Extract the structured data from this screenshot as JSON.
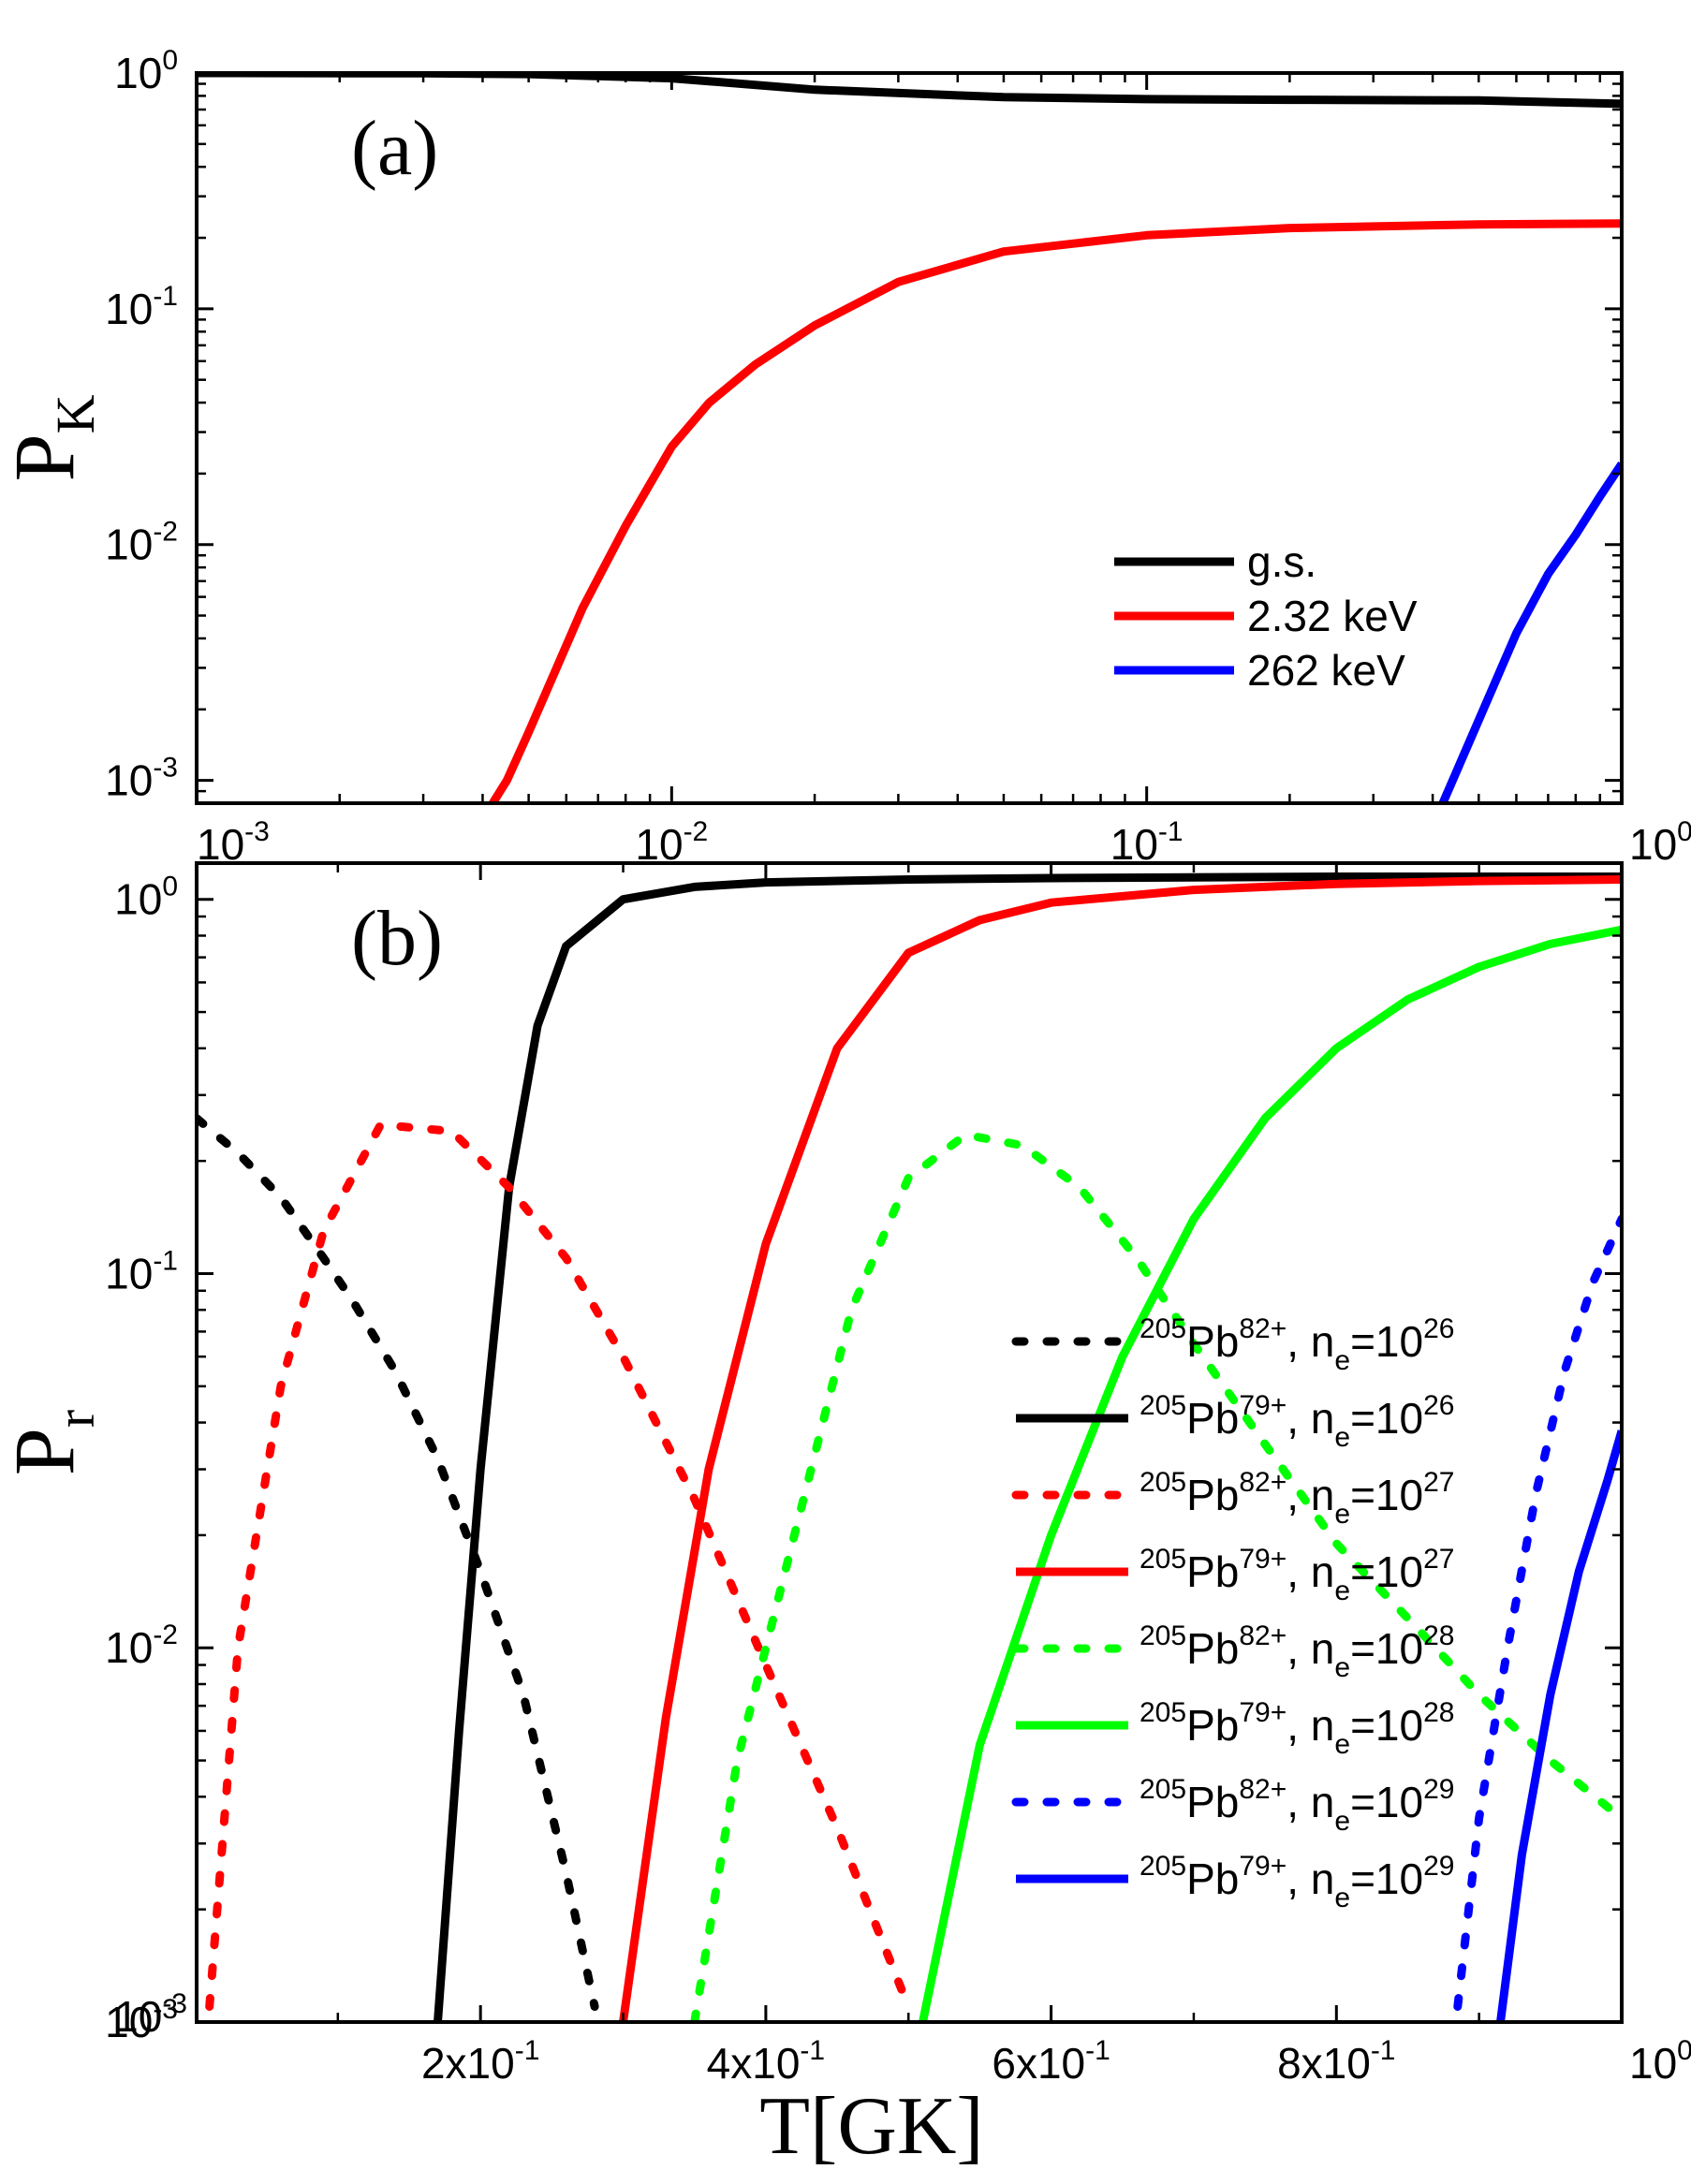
{
  "chart_data": [
    {
      "panel_label": "(a)",
      "type": "line",
      "xscale": "log",
      "yscale": "log",
      "xlim": [
        0.001,
        1
      ],
      "ylim": [
        0.0008,
        1
      ],
      "ylabel": {
        "main": "P",
        "sub": "K"
      },
      "xlabel": "",
      "x_ticks": [
        {
          "value": 0.001,
          "base": "10",
          "exp": "-3"
        },
        {
          "value": 0.01,
          "base": "10",
          "exp": "-2"
        },
        {
          "value": 0.1,
          "base": "10",
          "exp": "-1"
        },
        {
          "value": 1,
          "base": "10",
          "exp": "0"
        }
      ],
      "y_ticks": [
        {
          "value": 0.001,
          "base": "10",
          "exp": "-3"
        },
        {
          "value": 0.01,
          "base": "10",
          "exp": "-2"
        },
        {
          "value": 0.1,
          "base": "10",
          "exp": "-1"
        },
        {
          "value": 1,
          "base": "10",
          "exp": "0"
        }
      ],
      "legend_position": "center-right",
      "series": [
        {
          "name": "g.s.",
          "color": "#000000",
          "dash": "solid",
          "x": [
            0.001,
            0.003,
            0.005,
            0.01,
            0.02,
            0.05,
            0.1,
            0.2,
            0.5,
            1.0
          ],
          "y": [
            1.0,
            0.997,
            0.99,
            0.95,
            0.85,
            0.79,
            0.775,
            0.77,
            0.765,
            0.74
          ]
        },
        {
          "name": "2.32 keV",
          "color": "#ff0000",
          "dash": "solid",
          "x": [
            0.0042,
            0.0045,
            0.005,
            0.0065,
            0.008,
            0.01,
            0.012,
            0.015,
            0.02,
            0.03,
            0.05,
            0.1,
            0.2,
            0.5,
            1.0
          ],
          "y": [
            0.0008,
            0.001,
            0.0016,
            0.0054,
            0.012,
            0.026,
            0.04,
            0.058,
            0.085,
            0.13,
            0.175,
            0.205,
            0.22,
            0.228,
            0.23
          ]
        },
        {
          "name": "262 keV",
          "color": "#0000ff",
          "dash": "solid",
          "x": [
            0.42,
            0.5,
            0.6,
            0.7,
            0.8,
            0.9,
            1.0
          ],
          "y": [
            0.0008,
            0.0018,
            0.0042,
            0.0075,
            0.011,
            0.016,
            0.022
          ]
        }
      ]
    },
    {
      "panel_label": "(b)",
      "type": "line",
      "xscale": "linear",
      "yscale": "log",
      "xlim": [
        0.001,
        1
      ],
      "ylim": [
        0.001,
        1.25
      ],
      "ylabel": {
        "main": "P",
        "sub": "r"
      },
      "xlabel": "T[GK]",
      "x_ticks": [
        {
          "value": 0.001,
          "base": "10",
          "exp": "-3"
        },
        {
          "value": 0.2,
          "base": "2x10",
          "exp": "-1"
        },
        {
          "value": 0.4,
          "base": "4x10",
          "exp": "-1"
        },
        {
          "value": 0.6,
          "base": "6x10",
          "exp": "-1"
        },
        {
          "value": 0.8,
          "base": "8x10",
          "exp": "-1"
        },
        {
          "value": 1,
          "base": "10",
          "exp": "0"
        }
      ],
      "y_ticks": [
        {
          "value": 0.001,
          "base": "10",
          "exp": "-3"
        },
        {
          "value": 0.01,
          "base": "10",
          "exp": "-2"
        },
        {
          "value": 0.1,
          "base": "10",
          "exp": "-1"
        },
        {
          "value": 1,
          "base": "10",
          "exp": "0"
        }
      ],
      "legend_position": "right",
      "series": [
        {
          "label": {
            "iso": "205",
            "ion": "82+",
            "ne": "26"
          },
          "color": "#000000",
          "dash": "dotted",
          "x": [
            0.001,
            0.03,
            0.06,
            0.09,
            0.11,
            0.14,
            0.17,
            0.2,
            0.23,
            0.26,
            0.28
          ],
          "y": [
            0.26,
            0.21,
            0.16,
            0.11,
            0.085,
            0.055,
            0.032,
            0.016,
            0.0075,
            0.0025,
            0.0011
          ]
        },
        {
          "label": {
            "iso": "205",
            "ion": "79+",
            "ne": "26"
          },
          "color": "#000000",
          "dash": "solid",
          "x": [
            0.17,
            0.185,
            0.2,
            0.22,
            0.24,
            0.26,
            0.3,
            0.35,
            0.4,
            0.5,
            0.6,
            0.8,
            1.0
          ],
          "y": [
            0.001,
            0.006,
            0.03,
            0.17,
            0.46,
            0.75,
            1.0,
            1.08,
            1.11,
            1.13,
            1.14,
            1.15,
            1.15
          ]
        },
        {
          "label": {
            "iso": "205",
            "ion": "82+",
            "ne": "27"
          },
          "color": "#ff0000",
          "dash": "dotted",
          "x": [
            0.01,
            0.03,
            0.06,
            0.09,
            0.13,
            0.18,
            0.22,
            0.26,
            0.3,
            0.35,
            0.4,
            0.45,
            0.5
          ],
          "y": [
            0.0011,
            0.01,
            0.05,
            0.13,
            0.25,
            0.24,
            0.17,
            0.11,
            0.06,
            0.025,
            0.009,
            0.0033,
            0.0011
          ]
        },
        {
          "label": {
            "iso": "205",
            "ion": "79+",
            "ne": "27"
          },
          "color": "#ff0000",
          "dash": "solid",
          "x": [
            0.3,
            0.33,
            0.36,
            0.4,
            0.45,
            0.5,
            0.55,
            0.6,
            0.7,
            0.8,
            0.9,
            1.0
          ],
          "y": [
            0.001,
            0.0065,
            0.03,
            0.12,
            0.4,
            0.72,
            0.88,
            0.98,
            1.06,
            1.1,
            1.12,
            1.13
          ]
        },
        {
          "label": {
            "iso": "205",
            "ion": "82+",
            "ne": "28"
          },
          "color": "#00ff00",
          "dash": "dotted",
          "x": [
            0.35,
            0.38,
            0.42,
            0.46,
            0.5,
            0.54,
            0.58,
            0.62,
            0.66,
            0.7,
            0.75,
            0.8,
            0.85,
            0.9,
            0.95,
            1.0
          ],
          "y": [
            0.001,
            0.005,
            0.02,
            0.08,
            0.18,
            0.235,
            0.22,
            0.17,
            0.11,
            0.065,
            0.035,
            0.019,
            0.012,
            0.0075,
            0.005,
            0.0035
          ]
        },
        {
          "label": {
            "iso": "205",
            "ion": "79+",
            "ne": "28"
          },
          "color": "#00ff00",
          "dash": "solid",
          "x": [
            0.51,
            0.55,
            0.6,
            0.65,
            0.7,
            0.75,
            0.8,
            0.85,
            0.9,
            0.95,
            1.0
          ],
          "y": [
            0.001,
            0.0055,
            0.02,
            0.06,
            0.14,
            0.26,
            0.4,
            0.54,
            0.66,
            0.76,
            0.83
          ]
        },
        {
          "label": {
            "iso": "205",
            "ion": "82+",
            "ne": "29"
          },
          "color": "#0000ff",
          "dash": "dotted",
          "x": [
            0.885,
            0.9,
            0.92,
            0.94,
            0.96,
            0.98,
            1.0
          ],
          "y": [
            0.0011,
            0.0035,
            0.01,
            0.026,
            0.055,
            0.095,
            0.14
          ]
        },
        {
          "label": {
            "iso": "205",
            "ion": "79+",
            "ne": "29"
          },
          "color": "#0000ff",
          "dash": "solid",
          "x": [
            0.915,
            0.93,
            0.95,
            0.97,
            0.99,
            1.0
          ],
          "y": [
            0.001,
            0.0028,
            0.0075,
            0.016,
            0.028,
            0.038
          ]
        }
      ]
    }
  ]
}
